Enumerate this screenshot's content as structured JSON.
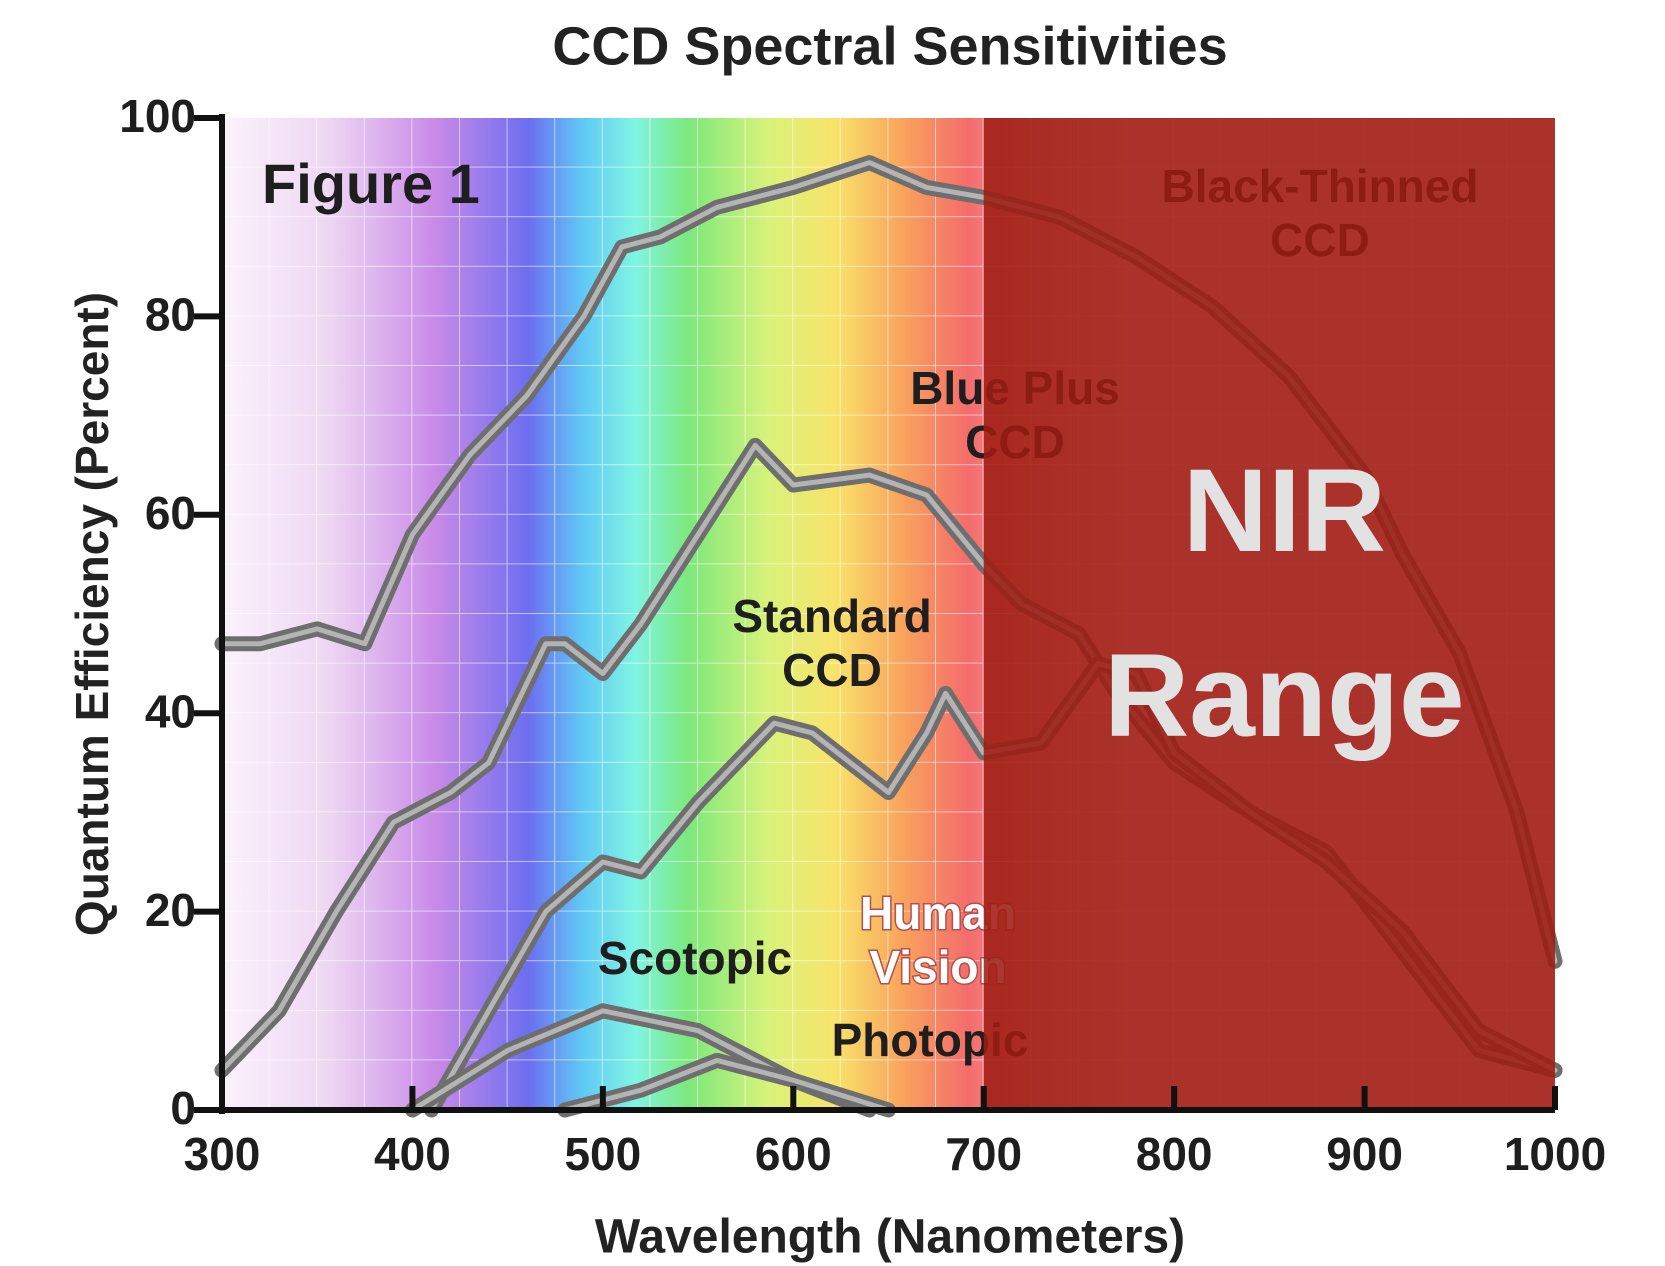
{
  "chart_data": {
    "type": "line",
    "title": "CCD Spectral Sensitivities",
    "x_label": "Wavelength (Nanometers)",
    "y_label": "Quantum Efficiency (Percent)",
    "xlim": [
      300,
      1000
    ],
    "ylim": [
      0,
      100
    ],
    "xticks": [
      300,
      400,
      500,
      600,
      700,
      800,
      900,
      1000
    ],
    "yticks": [
      0,
      20,
      40,
      60,
      80,
      100
    ],
    "line_color": "#6e6e6e",
    "series": [
      {
        "label": [
          "Black-Thinned",
          "CCD"
        ],
        "x": [
          300,
          320,
          350,
          375,
          400,
          430,
          460,
          490,
          510,
          530,
          560,
          600,
          640,
          670,
          700,
          740,
          780,
          820,
          860,
          900,
          920,
          950,
          980,
          1000
        ],
        "values": [
          47,
          47,
          48.5,
          47,
          58,
          66,
          72,
          80,
          87,
          88,
          91,
          93,
          95.5,
          93,
          92,
          90,
          86,
          81,
          74,
          64,
          56,
          46,
          30,
          15
        ]
      },
      {
        "label": [
          "Blue Plus",
          "CCD"
        ],
        "x": [
          300,
          330,
          360,
          390,
          420,
          440,
          470,
          480,
          500,
          520,
          550,
          580,
          600,
          640,
          670,
          700,
          720,
          750,
          770,
          800,
          840,
          880,
          920,
          960,
          1000
        ],
        "values": [
          4,
          10,
          20,
          29,
          32,
          35,
          47,
          47,
          44,
          49,
          58,
          67,
          63,
          64,
          62,
          55,
          51,
          48,
          42,
          35,
          30,
          26,
          16,
          6,
          4
        ]
      },
      {
        "label": [
          "Standard",
          "CCD"
        ],
        "x": [
          410,
          440,
          470,
          500,
          520,
          550,
          590,
          610,
          650,
          670,
          680,
          700,
          730,
          760,
          780,
          800,
          840,
          880,
          920,
          960,
          1000
        ],
        "values": [
          0,
          10,
          20,
          25,
          24,
          31,
          39,
          38,
          32,
          38,
          42,
          36,
          37,
          45,
          44,
          36,
          30,
          25,
          18,
          8,
          4
        ]
      },
      {
        "label": [
          "Scotopic"
        ],
        "x": [
          400,
          450,
          500,
          550,
          600,
          640
        ],
        "values": [
          0,
          6,
          10,
          8,
          3,
          0
        ]
      },
      {
        "label": [
          "Photopic"
        ],
        "x": [
          480,
          520,
          560,
          600,
          650
        ],
        "values": [
          0,
          2,
          5,
          3,
          0
        ]
      }
    ],
    "annotations": [
      {
        "text": [
          "Figure 1"
        ]
      },
      {
        "text": [
          "Human",
          "Vision"
        ]
      }
    ],
    "highlight": {
      "x": [
        700,
        1000
      ],
      "color": "#9e1d12",
      "label": [
        "NIR",
        "Range"
      ]
    }
  }
}
